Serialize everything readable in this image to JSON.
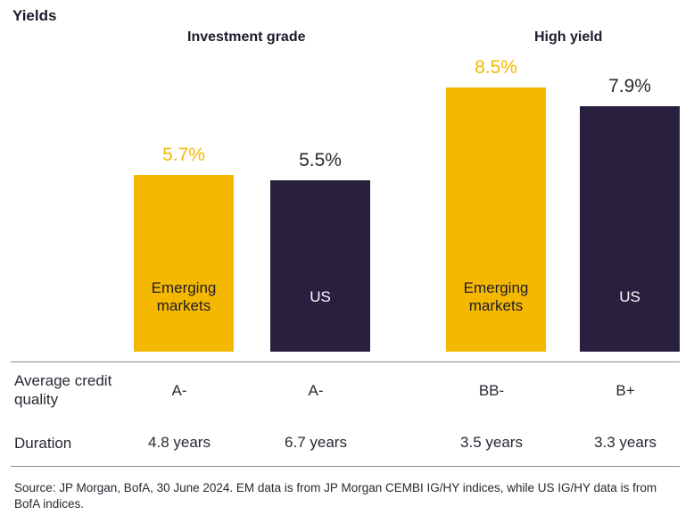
{
  "chart_data": {
    "type": "bar",
    "title": "Yields",
    "groups": [
      {
        "label": "Investment grade",
        "categories": [
          "Emerging markets",
          "US"
        ]
      },
      {
        "label": "High yield",
        "categories": [
          "Emerging markets",
          "US"
        ]
      }
    ],
    "categories": [
      "Emerging markets",
      "US",
      "Emerging markets",
      "US"
    ],
    "values": [
      5.7,
      5.5,
      8.5,
      7.9
    ],
    "value_labels": [
      "5.7%",
      "5.5%",
      "8.5%",
      "7.9%"
    ],
    "bar_colors": [
      "#f5b800",
      "#29203f",
      "#f5b800",
      "#29203f"
    ],
    "label_colors": [
      "#f5b800",
      "#2b2b2b",
      "#f5b800",
      "#2b2b2b"
    ],
    "inbar_label_colors": [
      "#1e1b2e",
      "#ffffff",
      "#1e1b2e",
      "#ffffff"
    ],
    "ylim": [
      0,
      9.5
    ],
    "grid": false
  },
  "table": {
    "rows": [
      {
        "label": "Average credit quality",
        "values": [
          "A-",
          "A-",
          "BB-",
          "B+"
        ]
      },
      {
        "label": "Duration",
        "values": [
          "4.8 years",
          "6.7 years",
          "3.5 years",
          "3.3 years"
        ]
      }
    ]
  },
  "source_note": "Source: JP Morgan, BofA, 30 June 2024. EM data is from JP Morgan CEMBI IG/HY indices, while US IG/HY data is from BofA indices."
}
